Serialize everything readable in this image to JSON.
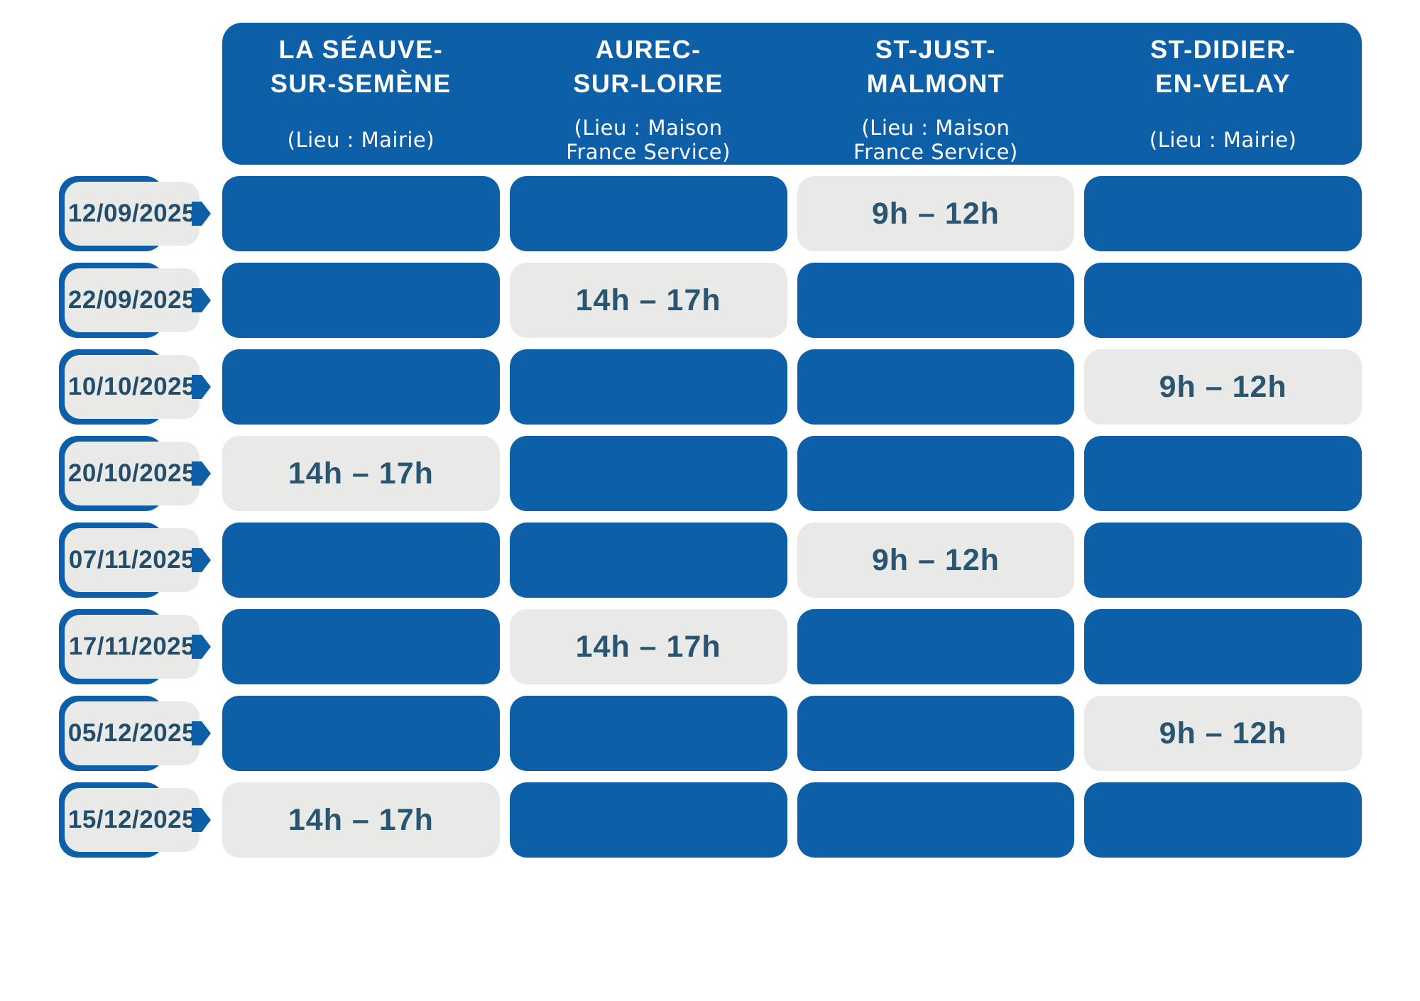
{
  "colors": {
    "primary_blue": "#0d5fa8",
    "slot_gray": "#e9e9e7",
    "text_navy": "#2a5571",
    "header_text": "#ffffff"
  },
  "columns": [
    {
      "name": "LA SÉAUVE-\nSUR-SEMÈNE",
      "location": "(Lieu : Mairie)"
    },
    {
      "name": "AUREC-\nSUR-LOIRE",
      "location": "(Lieu : Maison\nFrance Service)"
    },
    {
      "name": "ST-JUST-\nMALMONT",
      "location": "(Lieu : Maison\nFrance Service)"
    },
    {
      "name": "ST-DIDIER-\nEN-VELAY",
      "location": "(Lieu : Mairie)"
    }
  ],
  "rows": [
    {
      "date": "12/09/2025",
      "slots": [
        "",
        "",
        "9h – 12h",
        ""
      ]
    },
    {
      "date": "22/09/2025",
      "slots": [
        "",
        "14h – 17h",
        "",
        ""
      ]
    },
    {
      "date": "10/10/2025",
      "slots": [
        "",
        "",
        "",
        "9h – 12h"
      ]
    },
    {
      "date": "20/10/2025",
      "slots": [
        "14h – 17h",
        "",
        "",
        ""
      ]
    },
    {
      "date": "07/11/2025",
      "slots": [
        "",
        "",
        "9h – 12h",
        ""
      ]
    },
    {
      "date": "17/11/2025",
      "slots": [
        "",
        "14h – 17h",
        "",
        ""
      ]
    },
    {
      "date": "05/12/2025",
      "slots": [
        "",
        "",
        "",
        "9h – 12h"
      ]
    },
    {
      "date": "15/12/2025",
      "slots": [
        "14h – 17h",
        "",
        "",
        ""
      ]
    }
  ]
}
